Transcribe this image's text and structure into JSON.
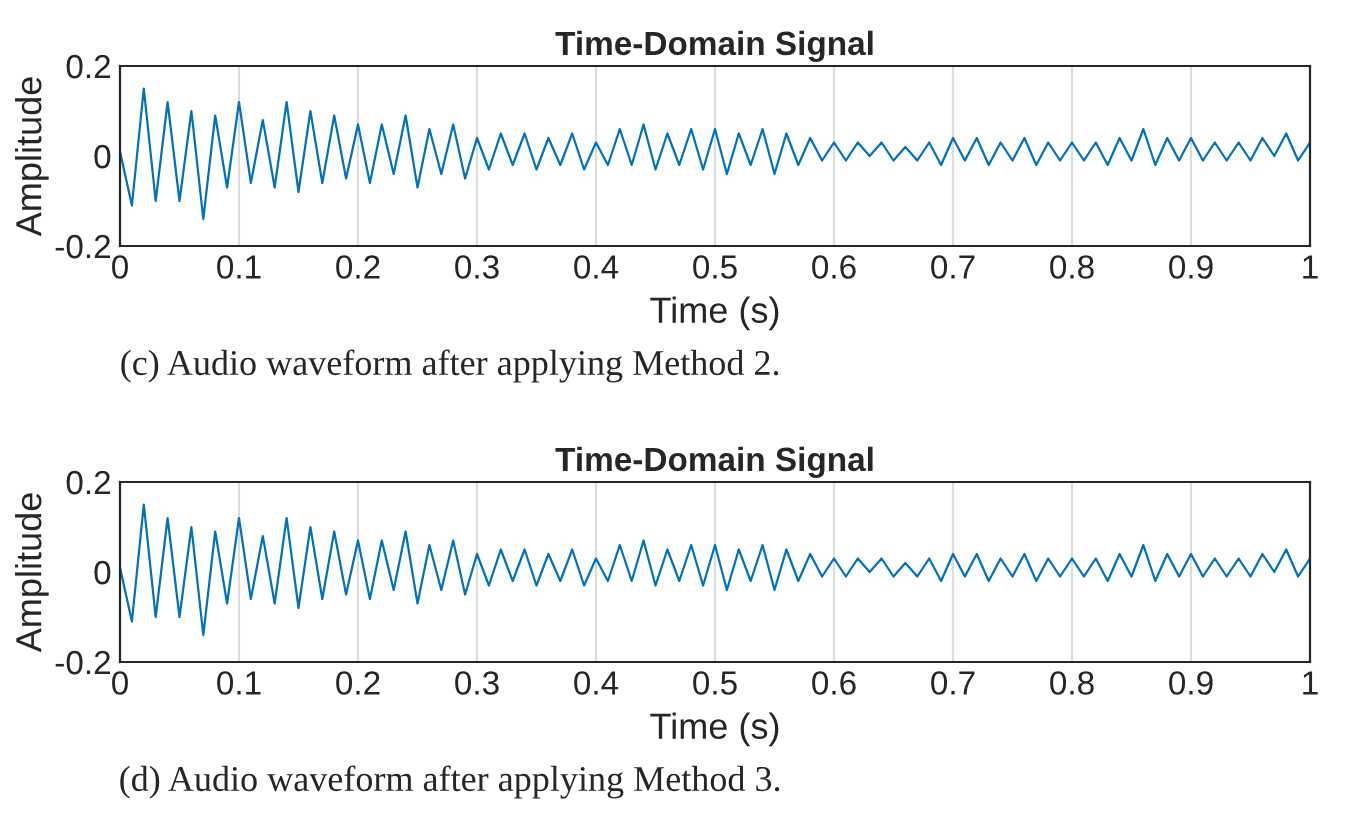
{
  "chart_data": [
    {
      "type": "line",
      "title": "Time-Domain Signal",
      "xlabel": "Time (s)",
      "ylabel": "Amplitude",
      "annotations": [
        "(c) Audio waveform after applying Method 2."
      ],
      "xlim": [
        0,
        1
      ],
      "ylim": [
        -0.2,
        0.2
      ],
      "xticks": [
        0,
        0.1,
        0.2,
        0.3,
        0.4,
        0.5,
        0.6,
        0.7,
        0.8,
        0.9,
        1
      ],
      "yticks": [
        -0.2,
        0,
        0.2
      ],
      "grid": "x",
      "legend": false,
      "marker": "none",
      "line_style": "solid",
      "series": [
        {
          "color": "#0072bd",
          "x": [
            0,
            0.01,
            0.02,
            0.03,
            0.04,
            0.05,
            0.06,
            0.07,
            0.08,
            0.09,
            0.1,
            0.11,
            0.12,
            0.13,
            0.14,
            0.15,
            0.16,
            0.17,
            0.18,
            0.19,
            0.2,
            0.21,
            0.22,
            0.23,
            0.24,
            0.25,
            0.26,
            0.27,
            0.28,
            0.29,
            0.3,
            0.31,
            0.32,
            0.33,
            0.34,
            0.35,
            0.36,
            0.37,
            0.38,
            0.39,
            0.4,
            0.41,
            0.42,
            0.43,
            0.44,
            0.45,
            0.46,
            0.47,
            0.48,
            0.49,
            0.5,
            0.51,
            0.52,
            0.53,
            0.54,
            0.55,
            0.56,
            0.57,
            0.58,
            0.59,
            0.6,
            0.61,
            0.62,
            0.63,
            0.64,
            0.65,
            0.66,
            0.67,
            0.68,
            0.69,
            0.7,
            0.71,
            0.72,
            0.73,
            0.74,
            0.75,
            0.76,
            0.77,
            0.78,
            0.79,
            0.8,
            0.81,
            0.82,
            0.83,
            0.84,
            0.85,
            0.86,
            0.87,
            0.88,
            0.89,
            0.9,
            0.91,
            0.92,
            0.93,
            0.94,
            0.95,
            0.96,
            0.97,
            0.98,
            0.99,
            1
          ],
          "values": [
            0.01,
            -0.11,
            0.15,
            -0.1,
            0.12,
            -0.1,
            0.1,
            -0.14,
            0.09,
            -0.07,
            0.12,
            -0.06,
            0.08,
            -0.07,
            0.12,
            -0.08,
            0.1,
            -0.06,
            0.09,
            -0.05,
            0.07,
            -0.06,
            0.07,
            -0.04,
            0.09,
            -0.07,
            0.06,
            -0.04,
            0.07,
            -0.05,
            0.04,
            -0.03,
            0.05,
            -0.02,
            0.05,
            -0.03,
            0.04,
            -0.02,
            0.05,
            -0.03,
            0.03,
            -0.02,
            0.06,
            -0.02,
            0.07,
            -0.03,
            0.05,
            -0.02,
            0.06,
            -0.03,
            0.06,
            -0.04,
            0.05,
            -0.02,
            0.06,
            -0.04,
            0.05,
            -0.02,
            0.04,
            -0.01,
            0.03,
            -0.01,
            0.03,
            0.0,
            0.03,
            -0.01,
            0.02,
            -0.01,
            0.03,
            -0.02,
            0.04,
            -0.01,
            0.04,
            -0.02,
            0.03,
            -0.01,
            0.04,
            -0.02,
            0.03,
            -0.01,
            0.03,
            -0.01,
            0.03,
            -0.02,
            0.04,
            -0.01,
            0.06,
            -0.02,
            0.04,
            -0.01,
            0.04,
            -0.01,
            0.03,
            -0.01,
            0.03,
            -0.01,
            0.04,
            0.0,
            0.05,
            -0.01,
            0.03
          ]
        }
      ]
    },
    {
      "type": "line",
      "title": "Time-Domain Signal",
      "xlabel": "Time (s)",
      "ylabel": "Amplitude",
      "annotations": [
        "(d) Audio waveform after applying Method 3."
      ],
      "xlim": [
        0,
        1
      ],
      "ylim": [
        -0.2,
        0.2
      ],
      "xticks": [
        0,
        0.1,
        0.2,
        0.3,
        0.4,
        0.5,
        0.6,
        0.7,
        0.8,
        0.9,
        1
      ],
      "yticks": [
        -0.2,
        0,
        0.2
      ],
      "grid": "x",
      "legend": false,
      "marker": "none",
      "line_style": "solid",
      "series": [
        {
          "color": "#0072bd",
          "x": [
            0,
            0.01,
            0.02,
            0.03,
            0.04,
            0.05,
            0.06,
            0.07,
            0.08,
            0.09,
            0.1,
            0.11,
            0.12,
            0.13,
            0.14,
            0.15,
            0.16,
            0.17,
            0.18,
            0.19,
            0.2,
            0.21,
            0.22,
            0.23,
            0.24,
            0.25,
            0.26,
            0.27,
            0.28,
            0.29,
            0.3,
            0.31,
            0.32,
            0.33,
            0.34,
            0.35,
            0.36,
            0.37,
            0.38,
            0.39,
            0.4,
            0.41,
            0.42,
            0.43,
            0.44,
            0.45,
            0.46,
            0.47,
            0.48,
            0.49,
            0.5,
            0.51,
            0.52,
            0.53,
            0.54,
            0.55,
            0.56,
            0.57,
            0.58,
            0.59,
            0.6,
            0.61,
            0.62,
            0.63,
            0.64,
            0.65,
            0.66,
            0.67,
            0.68,
            0.69,
            0.7,
            0.71,
            0.72,
            0.73,
            0.74,
            0.75,
            0.76,
            0.77,
            0.78,
            0.79,
            0.8,
            0.81,
            0.82,
            0.83,
            0.84,
            0.85,
            0.86,
            0.87,
            0.88,
            0.89,
            0.9,
            0.91,
            0.92,
            0.93,
            0.94,
            0.95,
            0.96,
            0.97,
            0.98,
            0.99,
            1
          ],
          "values": [
            0.01,
            -0.11,
            0.15,
            -0.1,
            0.12,
            -0.1,
            0.1,
            -0.14,
            0.09,
            -0.07,
            0.12,
            -0.06,
            0.08,
            -0.07,
            0.12,
            -0.08,
            0.1,
            -0.06,
            0.09,
            -0.05,
            0.07,
            -0.06,
            0.07,
            -0.04,
            0.09,
            -0.07,
            0.06,
            -0.04,
            0.07,
            -0.05,
            0.04,
            -0.03,
            0.05,
            -0.02,
            0.05,
            -0.03,
            0.04,
            -0.02,
            0.05,
            -0.03,
            0.03,
            -0.02,
            0.06,
            -0.02,
            0.07,
            -0.03,
            0.05,
            -0.02,
            0.06,
            -0.03,
            0.06,
            -0.04,
            0.05,
            -0.02,
            0.06,
            -0.04,
            0.05,
            -0.02,
            0.04,
            -0.01,
            0.03,
            -0.01,
            0.03,
            0.0,
            0.03,
            -0.01,
            0.02,
            -0.01,
            0.03,
            -0.02,
            0.04,
            -0.01,
            0.04,
            -0.02,
            0.03,
            -0.01,
            0.04,
            -0.02,
            0.03,
            -0.01,
            0.03,
            -0.01,
            0.03,
            -0.02,
            0.04,
            -0.01,
            0.06,
            -0.02,
            0.04,
            -0.01,
            0.04,
            -0.01,
            0.03,
            -0.01,
            0.03,
            -0.01,
            0.04,
            0.0,
            0.05,
            -0.01,
            0.03
          ]
        }
      ]
    }
  ]
}
